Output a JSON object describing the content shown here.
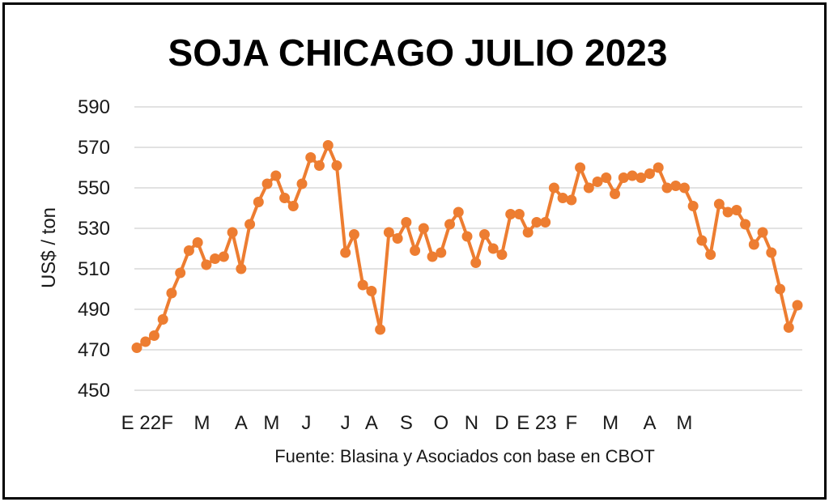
{
  "chart_data": {
    "type": "line",
    "title": "SOJA CHICAGO JULIO 2023",
    "ylabel": "US$ / ton",
    "xlabel": "",
    "source": "Fuente: Blasina y Asociados con base en CBOT",
    "ylim": [
      450,
      590
    ],
    "yticks": [
      450,
      470,
      490,
      510,
      530,
      550,
      570,
      590
    ],
    "grid": true,
    "legend": "none",
    "xticks": [
      {
        "label": "E 22",
        "index": 0.5
      },
      {
        "label": "F",
        "index": 3.5
      },
      {
        "label": "M",
        "index": 7.5
      },
      {
        "label": "A",
        "index": 12.0
      },
      {
        "label": "M",
        "index": 15.5
      },
      {
        "label": "J",
        "index": 19.5
      },
      {
        "label": "J",
        "index": 24.0
      },
      {
        "label": "A",
        "index": 27.0
      },
      {
        "label": "S",
        "index": 31.0
      },
      {
        "label": "O",
        "index": 35.0
      },
      {
        "label": "N",
        "index": 38.5
      },
      {
        "label": "D",
        "index": 42.0
      },
      {
        "label": "E 23",
        "index": 46.0
      },
      {
        "label": "F",
        "index": 50.0
      },
      {
        "label": "M",
        "index": 54.5
      },
      {
        "label": "A",
        "index": 59.0
      },
      {
        "label": "M",
        "index": 63.0
      }
    ],
    "series": [
      {
        "color": "#ED7D31",
        "values": [
          471,
          474,
          477,
          485,
          498,
          508,
          519,
          523,
          512,
          515,
          516,
          528,
          510,
          532,
          543,
          552,
          556,
          545,
          541,
          552,
          565,
          561,
          571,
          561,
          518,
          527,
          502,
          499,
          480,
          528,
          525,
          533,
          519,
          530,
          516,
          518,
          532,
          538,
          526,
          513,
          527,
          520,
          517,
          537,
          537,
          528,
          533,
          533,
          550,
          545,
          544,
          560,
          550,
          553,
          555,
          547,
          555,
          556,
          555,
          557,
          560,
          550,
          551,
          550,
          541,
          524,
          517,
          542,
          538,
          539,
          532,
          522,
          528,
          518,
          500,
          481,
          492
        ]
      }
    ]
  }
}
